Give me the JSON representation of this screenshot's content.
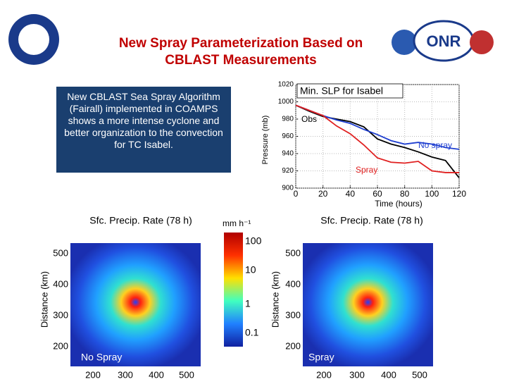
{
  "header": {
    "title_lines": [
      "New Spray Parameterization Based on",
      "CBLAST Measurements"
    ]
  },
  "textbox": "New CBLAST Sea Spray Algorithm (Fairall) implemented in COAMPS shows a more intense cyclone and better organization to the convection for TC Isabel.",
  "chart_data": {
    "type": "line",
    "title": "Min. SLP for Isabel",
    "xlabel": "Time (hours)",
    "ylabel": "Pressure (mb)",
    "x": [
      0,
      10,
      20,
      30,
      40,
      50,
      60,
      70,
      80,
      90,
      100,
      110,
      120
    ],
    "xlim": [
      0,
      120
    ],
    "xticks": [
      0,
      20,
      40,
      60,
      80,
      100,
      120
    ],
    "ylim": [
      900,
      1020
    ],
    "yticks": [
      900,
      920,
      940,
      960,
      980,
      1000,
      1020
    ],
    "series": [
      {
        "name": "Obs",
        "color": "#000000",
        "values": [
          996,
          989,
          983,
          980,
          977,
          971,
          957,
          951,
          947,
          942,
          936,
          932,
          912
        ]
      },
      {
        "name": "No spray",
        "color": "#1f3fd0",
        "values": [
          996,
          990,
          984,
          979,
          975,
          968,
          962,
          955,
          951,
          953,
          951,
          947,
          945
        ]
      },
      {
        "name": "Spray",
        "color": "#e02020",
        "values": [
          996,
          990,
          984,
          972,
          963,
          950,
          935,
          930,
          929,
          931,
          920,
          918,
          918
        ]
      }
    ]
  },
  "panels": [
    {
      "title": "Sfc. Precip. Rate (78 h)",
      "label": "No Spray",
      "ylabel": "Distance (km)",
      "yticks": [
        "500",
        "400",
        "300",
        "200"
      ],
      "xticks": [
        "200",
        "300",
        "400",
        "500"
      ]
    },
    {
      "title": "Sfc. Precip. Rate (78 h)",
      "label": "Spray",
      "ylabel": "Distance (km)",
      "yticks": [
        "500",
        "400",
        "300",
        "200"
      ],
      "xticks": [
        "200",
        "300",
        "400",
        "500"
      ]
    }
  ],
  "colorbar": {
    "unit": "mm h⁻¹",
    "ticks": [
      "100",
      "10",
      "1",
      "0.1"
    ]
  }
}
